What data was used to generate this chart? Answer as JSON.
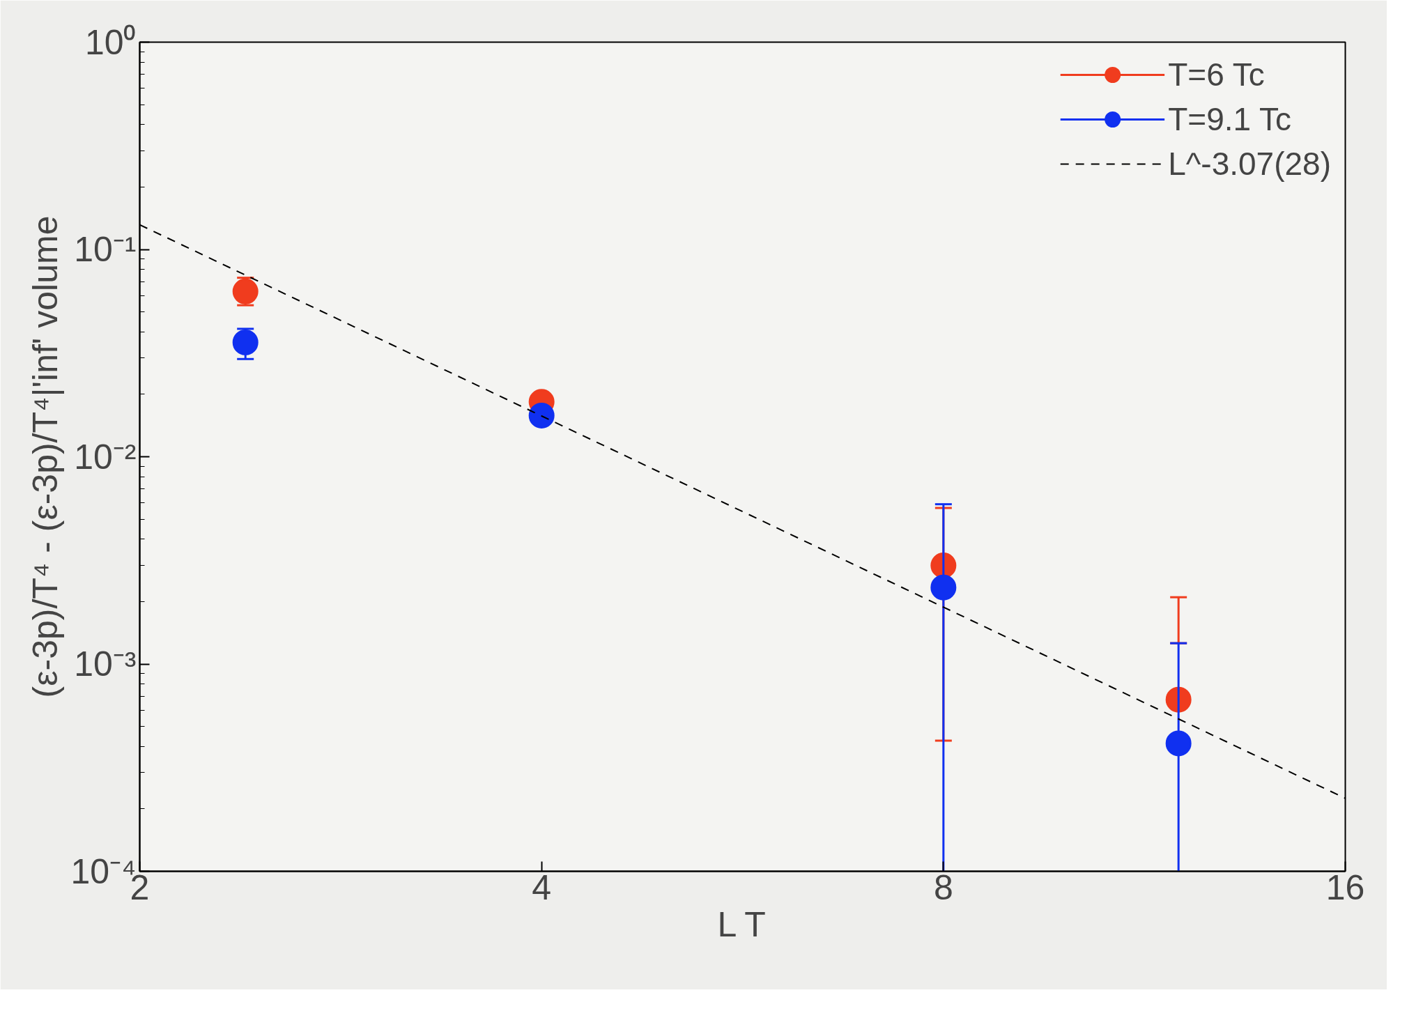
{
  "chart_data": {
    "type": "scatter",
    "xlabel": "L T",
    "ylabel": "(ε-3p)/T⁴ - (ε-3p)/T⁴|'inf' volume",
    "log": "xy",
    "xlim": [
      2,
      16
    ],
    "ylim": [
      0.0001,
      1
    ],
    "xticks": [
      2,
      4,
      8,
      16
    ],
    "yticks": [
      {
        "value": 1,
        "label": "10⁰"
      },
      {
        "value": 0.1,
        "label": "10⁻¹"
      },
      {
        "value": 0.01,
        "label": "10⁻²"
      },
      {
        "value": 0.001,
        "label": "10⁻³"
      },
      {
        "value": 0.0001,
        "label": "10⁻⁴"
      }
    ],
    "grid": false,
    "legend": "top right",
    "x": [
      2.4,
      4,
      8,
      12
    ],
    "series": [
      {
        "name": "T=6 Tc",
        "color": "#f03c1e",
        "marker": "circle",
        "values": [
          0.0627,
          0.0184,
          0.00299,
          0.000673
        ],
        "errors": [
          [
            0.0538,
            0.073
          ],
          null,
          [
            0.000427,
            0.00566
          ],
          [
            0.00126,
            0.0021
          ]
        ]
      },
      {
        "name": "T=9.1 Tc",
        "color": "#1030f0",
        "marker": "circle",
        "values": [
          0.0356,
          0.0158,
          0.00234,
          0.000414
        ],
        "errors": [
          [
            0.0296,
            0.0414
          ],
          null,
          [
            0.0001,
            0.0059
          ],
          [
            0.0001,
            0.00126
          ]
        ]
      },
      {
        "name": "L^-3.07(28)",
        "type": "line",
        "color": "#000000",
        "line_style": "dashed",
        "marker": "none",
        "x": [
          2,
          16
        ],
        "values": [
          0.1315,
          0.000225
        ]
      }
    ]
  }
}
